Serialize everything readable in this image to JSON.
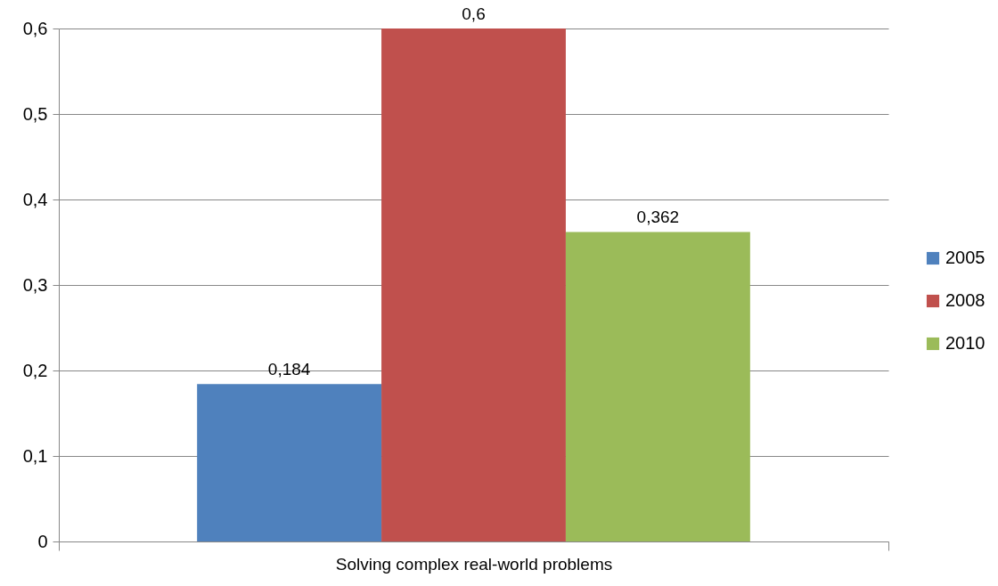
{
  "chart_data": {
    "type": "bar",
    "categories": [
      "Solving complex real-world problems"
    ],
    "series": [
      {
        "name": "2005",
        "color": "#4f81bd",
        "values": [
          0.184
        ],
        "value_labels": [
          "0,184"
        ]
      },
      {
        "name": "2008",
        "color": "#c0504d",
        "values": [
          0.6
        ],
        "value_labels": [
          "0,6"
        ]
      },
      {
        "name": "2010",
        "color": "#9bbb59",
        "values": [
          0.362
        ],
        "value_labels": [
          "0,362"
        ]
      }
    ],
    "ylim": [
      0,
      0.6
    ],
    "yticks": [
      0,
      {
        "value": 0.1,
        "label": "0,1"
      },
      {
        "value": 0.2,
        "label": "0,2"
      },
      {
        "value": 0.3,
        "label": "0,3"
      },
      {
        "value": 0.4,
        "label": "0,4"
      },
      {
        "value": 0.5,
        "label": "0,5"
      },
      {
        "value": 0.6,
        "label": "0,6"
      }
    ],
    "grid": "y",
    "legend": "right"
  }
}
